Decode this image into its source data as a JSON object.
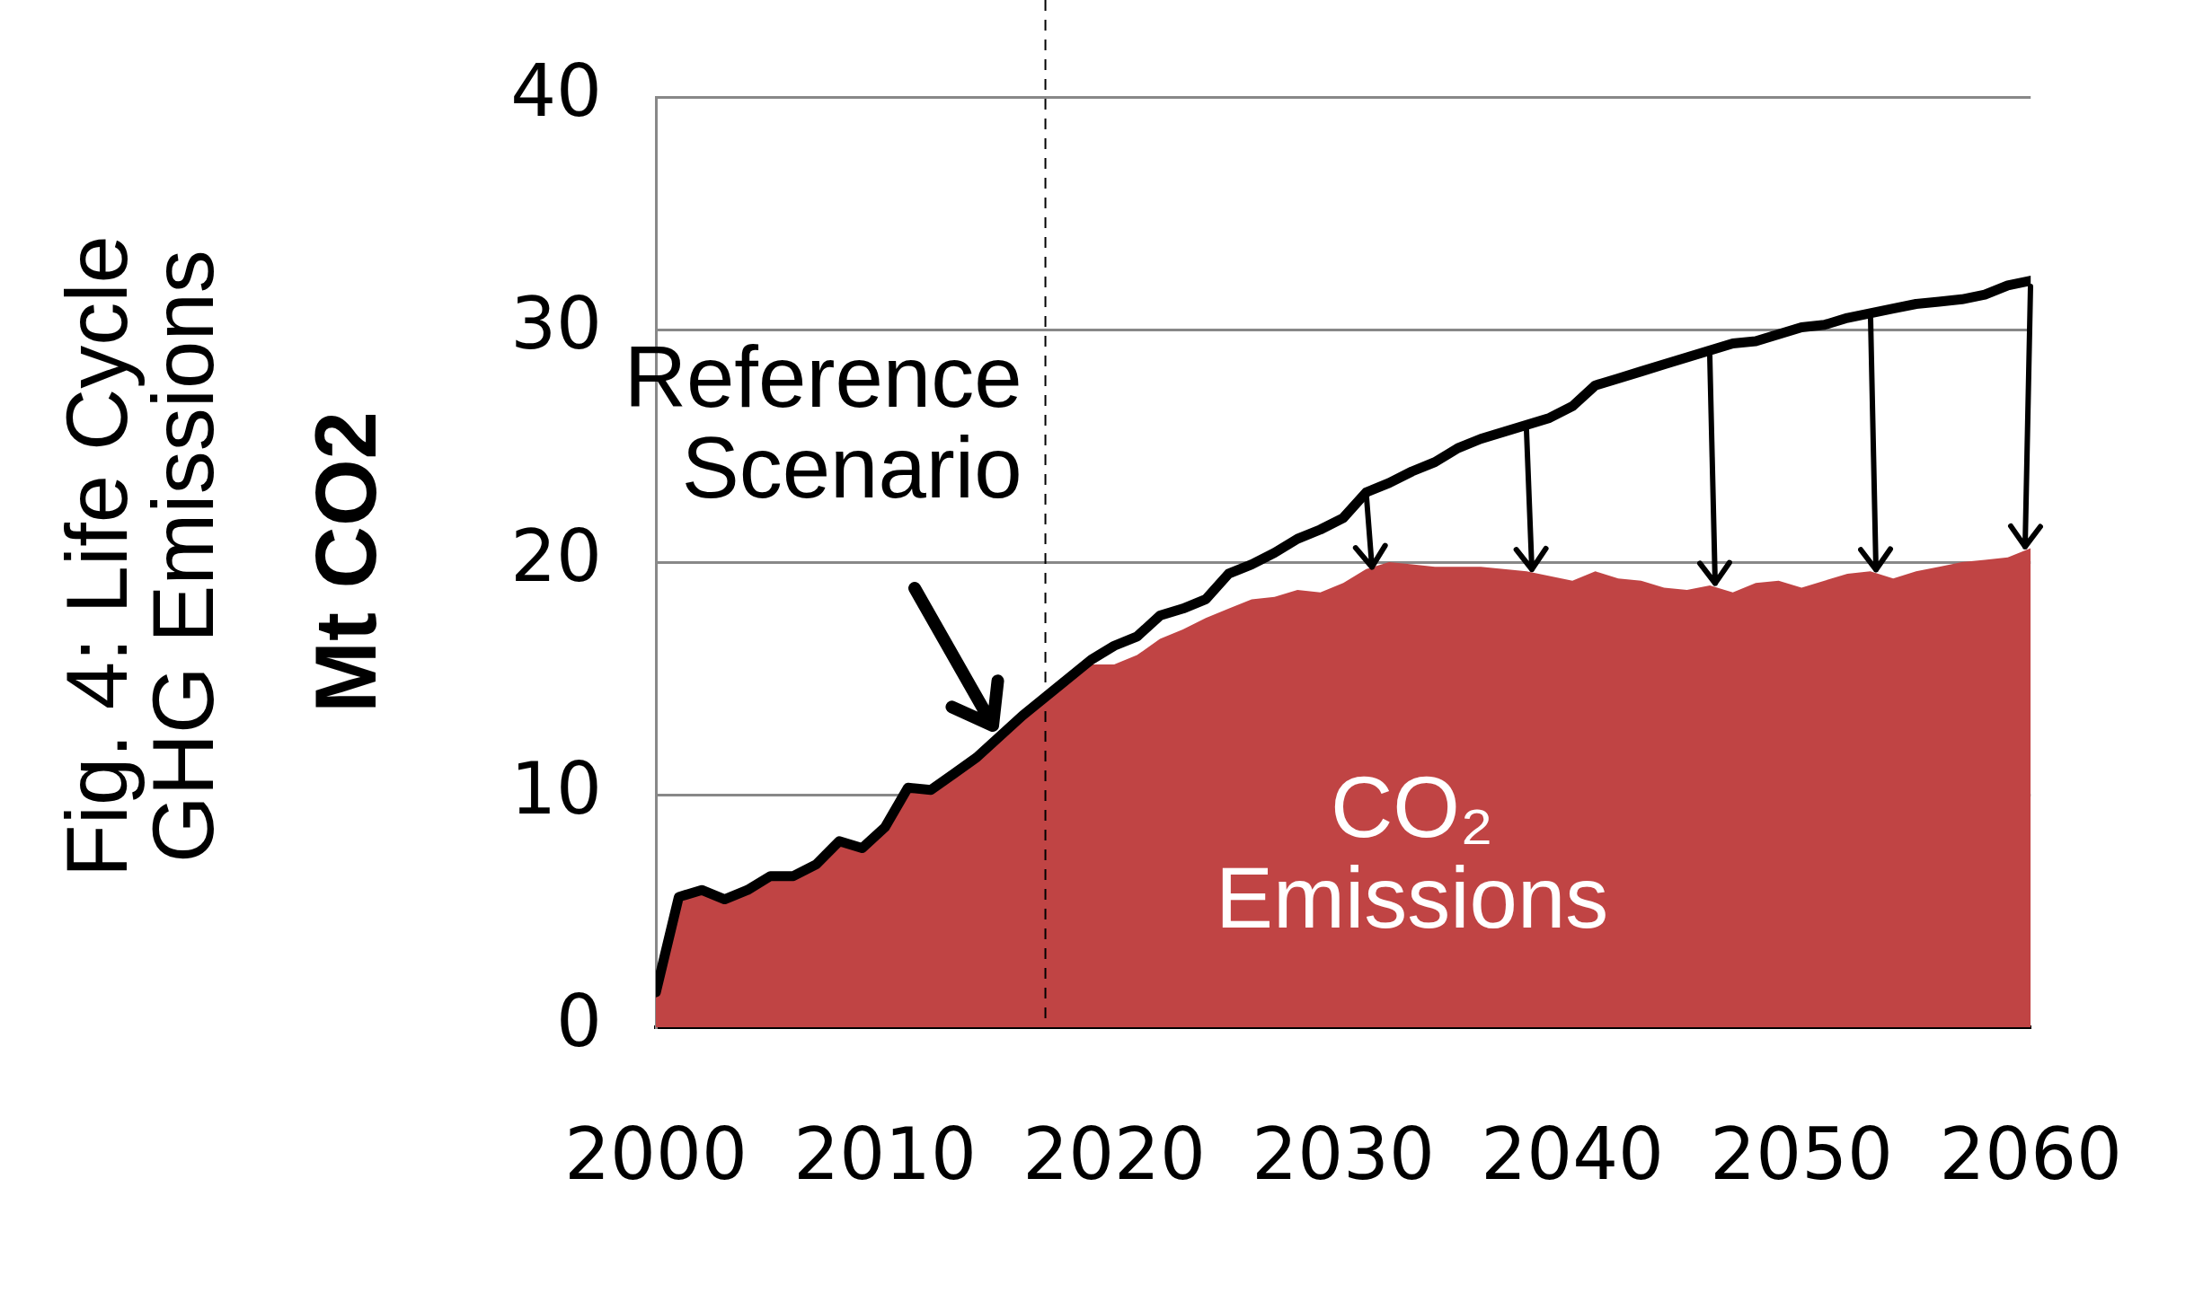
{
  "chart_data": {
    "type": "area",
    "title": "Fig. 4: Life Cycle GHG Emissions",
    "ylabel": "Mt CO2",
    "x": [
      2000,
      2001,
      2002,
      2003,
      2004,
      2005,
      2006,
      2007,
      2008,
      2009,
      2010,
      2011,
      2012,
      2013,
      2014,
      2015,
      2016,
      2017,
      2018,
      2019,
      2020,
      2021,
      2022,
      2023,
      2024,
      2025,
      2026,
      2027,
      2028,
      2029,
      2030,
      2031,
      2032,
      2033,
      2034,
      2035,
      2036,
      2037,
      2038,
      2039,
      2040,
      2041,
      2042,
      2043,
      2044,
      2045,
      2046,
      2047,
      2048,
      2049,
      2050,
      2051,
      2052,
      2053,
      2054,
      2055,
      2056,
      2057,
      2058,
      2059,
      2060
    ],
    "series": [
      {
        "name": "CO₂ Emissions",
        "color": "#c04444",
        "values": [
          1.5,
          5.6,
          5.9,
          5.5,
          5.9,
          6.5,
          6.5,
          7.0,
          8.0,
          7.7,
          8.6,
          10.3,
          10.2,
          10.9,
          11.6,
          12.5,
          13.4,
          14.2,
          15.0,
          15.6,
          15.6,
          16.0,
          16.7,
          17.1,
          17.6,
          18.0,
          18.4,
          18.5,
          18.8,
          18.7,
          19.1,
          19.7,
          20.0,
          19.9,
          19.8,
          19.8,
          19.8,
          19.7,
          19.6,
          19.4,
          19.2,
          19.6,
          19.3,
          19.2,
          18.9,
          18.8,
          19.0,
          18.7,
          19.1,
          19.2,
          18.9,
          19.2,
          19.5,
          19.6,
          19.3,
          19.6,
          19.8,
          20.0,
          20.1,
          20.2,
          20.6
        ]
      },
      {
        "name": "Reference Scenario",
        "type": "line",
        "color": "#000000",
        "values": [
          1.5,
          5.6,
          5.9,
          5.5,
          5.9,
          6.5,
          6.5,
          7.0,
          8.0,
          7.7,
          8.6,
          10.3,
          10.2,
          10.9,
          11.6,
          12.5,
          13.4,
          14.2,
          15.0,
          15.8,
          16.4,
          16.8,
          17.7,
          18.0,
          18.4,
          19.5,
          19.9,
          20.4,
          21.0,
          21.4,
          21.9,
          23.0,
          23.4,
          23.9,
          24.3,
          24.9,
          25.3,
          25.6,
          25.9,
          26.2,
          26.7,
          27.6,
          27.9,
          28.2,
          28.5,
          28.8,
          29.1,
          29.4,
          29.5,
          29.8,
          30.1,
          30.2,
          30.5,
          30.7,
          30.9,
          31.1,
          31.2,
          31.3,
          31.5,
          31.9,
          32.1
        ]
      }
    ],
    "xlim": [
      2000,
      2060
    ],
    "xticks": [
      2000,
      2010,
      2020,
      2030,
      2040,
      2050,
      2060
    ],
    "ylim": [
      0,
      40
    ],
    "yticks": [
      0,
      10,
      20,
      30,
      40
    ],
    "ref_lines": [
      {
        "axis": "x",
        "value": 2017,
        "color": "#000000",
        "line_style": "dashed"
      }
    ],
    "grid": "y",
    "legend": false,
    "marker": "none",
    "line_style": "solid"
  }
}
